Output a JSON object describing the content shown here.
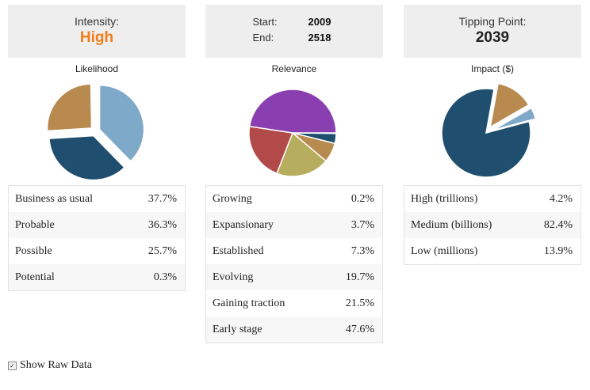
{
  "intensity": {
    "label": "Intensity:",
    "value": "High",
    "color": "#f07d1a"
  },
  "timeline": {
    "start_label": "Start:",
    "start_value": "2009",
    "end_label": "End:",
    "end_value": "2518"
  },
  "tipping": {
    "label": "Tipping Point:",
    "value": "2039"
  },
  "likelihood": {
    "title": "Likelihood",
    "rows": [
      {
        "label": "Business as usual",
        "value": "37.7%"
      },
      {
        "label": "Probable",
        "value": "36.3%"
      },
      {
        "label": "Possible",
        "value": "25.7%"
      },
      {
        "label": "Potential",
        "value": "0.3%"
      }
    ]
  },
  "relevance": {
    "title": "Relevance",
    "rows": [
      {
        "label": "Growing",
        "value": "0.2%"
      },
      {
        "label": "Expansionary",
        "value": "3.7%"
      },
      {
        "label": "Established",
        "value": "7.3%"
      },
      {
        "label": "Evolving",
        "value": "19.7%"
      },
      {
        "label": "Gaining traction",
        "value": "21.5%"
      },
      {
        "label": "Early stage",
        "value": "47.6%"
      }
    ]
  },
  "impact": {
    "title": "Impact ($)",
    "rows": [
      {
        "label": "High (trillions)",
        "value": "4.2%"
      },
      {
        "label": "Medium (billions)",
        "value": "82.4%"
      },
      {
        "label": "Low (millions)",
        "value": "13.9%"
      }
    ]
  },
  "chart_data": [
    {
      "type": "pie",
      "title": "Likelihood",
      "categories": [
        "Business as usual",
        "Probable",
        "Possible",
        "Potential"
      ],
      "values": [
        37.7,
        36.3,
        25.7,
        0.3
      ],
      "colors": [
        "#7fa9c9",
        "#1f4e6e",
        "#b98a4f",
        "#cfd8df"
      ]
    },
    {
      "type": "pie",
      "title": "Relevance",
      "categories": [
        "Growing",
        "Expansionary",
        "Established",
        "Evolving",
        "Gaining traction",
        "Early stage"
      ],
      "values": [
        0.2,
        3.7,
        7.3,
        19.7,
        21.5,
        47.6
      ],
      "colors": [
        "#c9d6df",
        "#1f4e6e",
        "#b98a4f",
        "#b7ad5e",
        "#b24a4a",
        "#8a3fb0"
      ]
    },
    {
      "type": "pie",
      "title": "Impact ($)",
      "categories": [
        "High (trillions)",
        "Medium (billions)",
        "Low (millions)"
      ],
      "values": [
        4.2,
        82.4,
        13.9
      ],
      "colors": [
        "#7fa9c9",
        "#1f4e6e",
        "#b98a4f"
      ]
    }
  ],
  "raw_toggle": {
    "label": "Show Raw Data",
    "checked": true
  }
}
